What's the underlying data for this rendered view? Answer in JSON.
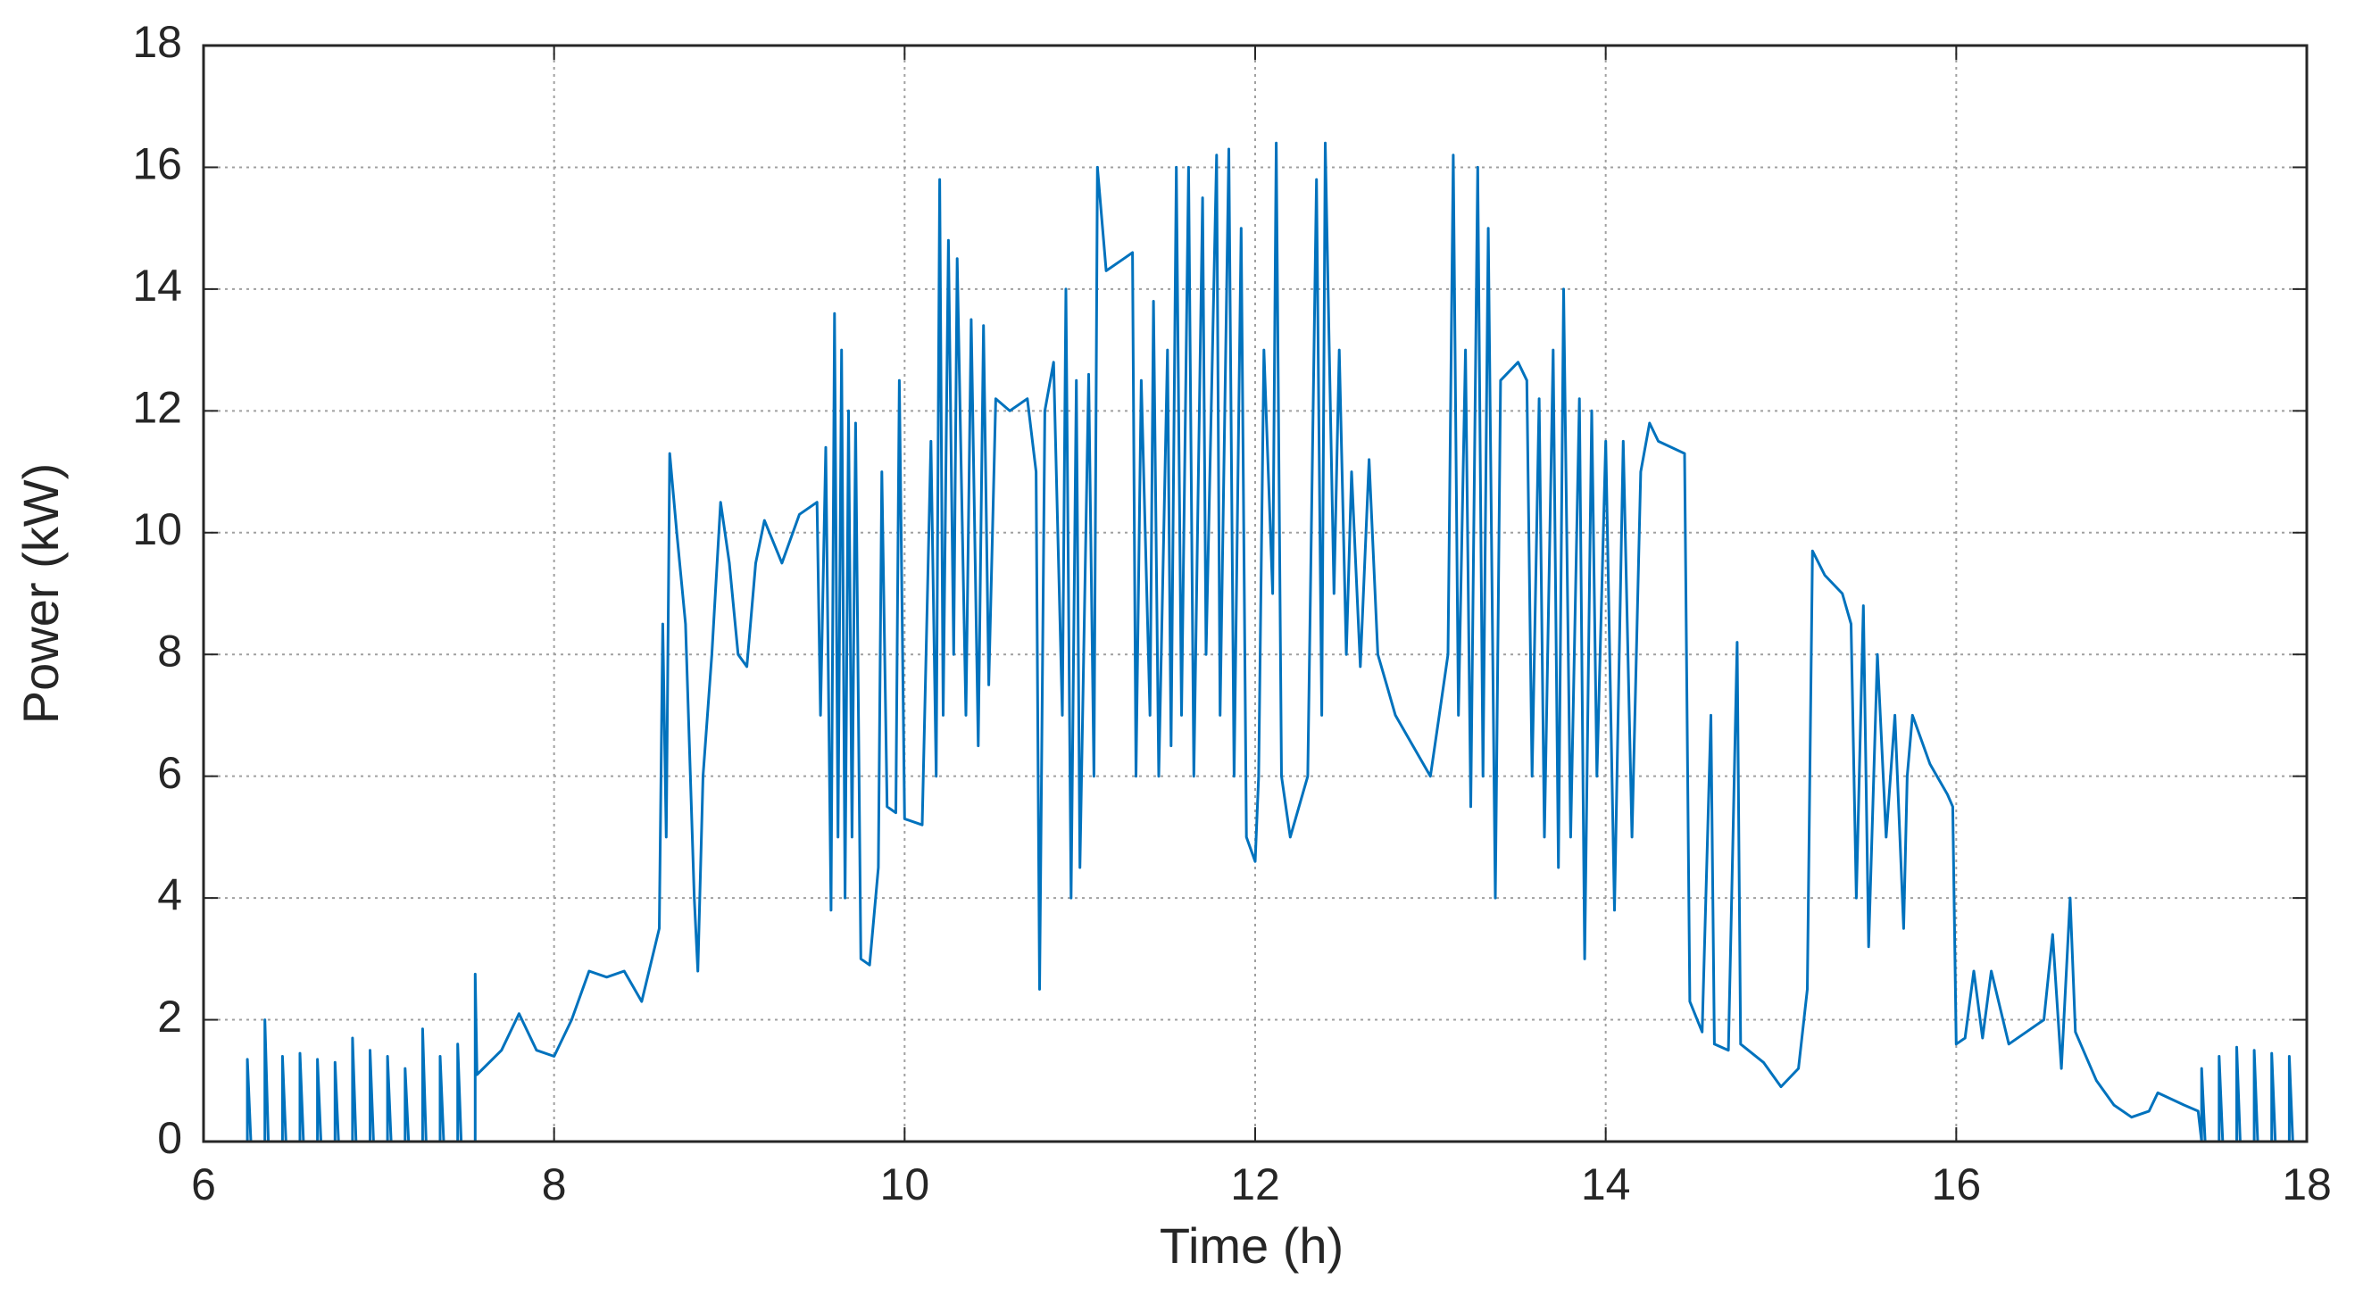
{
  "chart_data": {
    "type": "line",
    "x_label": "Time (h)",
    "y_label": "Power (kW)",
    "xlim": [
      6,
      18
    ],
    "ylim": [
      0,
      18
    ],
    "xticks": [
      6,
      8,
      10,
      12,
      14,
      16,
      18
    ],
    "yticks": [
      0,
      2,
      4,
      6,
      8,
      10,
      12,
      14,
      16,
      18
    ],
    "grid": true,
    "x": [
      6.25,
      6.25,
      6.27,
      6.35,
      6.35,
      6.37,
      6.45,
      6.45,
      6.47,
      6.55,
      6.55,
      6.57,
      6.65,
      6.65,
      6.67,
      6.75,
      6.75,
      6.77,
      6.85,
      6.85,
      6.87,
      6.95,
      6.95,
      6.97,
      7.05,
      7.05,
      7.07,
      7.15,
      7.15,
      7.17,
      7.25,
      7.25,
      7.27,
      7.35,
      7.35,
      7.37,
      7.45,
      7.45,
      7.47,
      7.55,
      7.55,
      7.56,
      7.7,
      7.8,
      7.9,
      8.0,
      8.1,
      8.2,
      8.3,
      8.4,
      8.5,
      8.6,
      8.62,
      8.64,
      8.66,
      8.7,
      8.75,
      8.8,
      8.82,
      8.85,
      8.9,
      8.95,
      9.0,
      9.05,
      9.1,
      9.15,
      9.2,
      9.3,
      9.4,
      9.5,
      9.52,
      9.55,
      9.58,
      9.6,
      9.62,
      9.64,
      9.66,
      9.68,
      9.7,
      9.72,
      9.75,
      9.8,
      9.85,
      9.87,
      9.9,
      9.95,
      9.97,
      10.0,
      10.1,
      10.15,
      10.18,
      10.2,
      10.22,
      10.25,
      10.28,
      10.3,
      10.35,
      10.38,
      10.42,
      10.45,
      10.48,
      10.52,
      10.6,
      10.7,
      10.75,
      10.77,
      10.8,
      10.85,
      10.9,
      10.92,
      10.95,
      10.98,
      11.0,
      11.05,
      11.08,
      11.1,
      11.15,
      11.25,
      11.3,
      11.32,
      11.35,
      11.4,
      11.42,
      11.45,
      11.5,
      11.52,
      11.55,
      11.58,
      11.62,
      11.65,
      11.7,
      11.72,
      11.78,
      11.8,
      11.85,
      11.88,
      11.92,
      11.95,
      12.0,
      12.02,
      12.05,
      12.1,
      12.12,
      12.15,
      12.2,
      12.3,
      12.35,
      12.38,
      12.4,
      12.45,
      12.48,
      12.52,
      12.55,
      12.6,
      12.65,
      12.7,
      12.75,
      12.8,
      12.9,
      13.0,
      13.05,
      13.1,
      13.13,
      13.16,
      13.2,
      13.23,
      13.27,
      13.3,
      13.33,
      13.37,
      13.4,
      13.5,
      13.55,
      13.58,
      13.62,
      13.65,
      13.7,
      13.73,
      13.76,
      13.8,
      13.85,
      13.88,
      13.92,
      13.95,
      14.0,
      14.05,
      14.1,
      14.15,
      14.2,
      14.25,
      14.3,
      14.45,
      14.48,
      14.55,
      14.6,
      14.62,
      14.7,
      14.75,
      14.77,
      14.9,
      15.0,
      15.1,
      15.15,
      15.18,
      15.25,
      15.35,
      15.4,
      15.43,
      15.47,
      15.5,
      15.55,
      15.6,
      15.65,
      15.7,
      15.72,
      15.75,
      15.85,
      15.95,
      15.98,
      16.0,
      16.05,
      16.1,
      16.15,
      16.2,
      16.3,
      16.4,
      16.5,
      16.55,
      16.6,
      16.65,
      16.68,
      16.8,
      16.9,
      17.0,
      17.1,
      17.15,
      17.3,
      17.38,
      17.4,
      17.4,
      17.42,
      17.5,
      17.5,
      17.52,
      17.6,
      17.6,
      17.62,
      17.7,
      17.7,
      17.72,
      17.8,
      17.8,
      17.82,
      17.9,
      17.9,
      17.92
    ],
    "series": [
      {
        "name": "Power",
        "color": "#0072bd",
        "values": [
          0,
          1.35,
          0,
          0,
          2.0,
          0,
          0,
          1.4,
          0,
          0,
          1.45,
          0,
          0,
          1.35,
          0,
          0,
          1.3,
          0,
          0,
          1.7,
          0,
          0,
          1.5,
          0,
          0,
          1.4,
          0,
          0,
          1.2,
          0,
          0,
          1.85,
          0,
          0,
          1.4,
          0,
          0,
          1.6,
          0,
          0,
          2.75,
          1.1,
          1.5,
          2.1,
          1.5,
          1.4,
          2.0,
          2.8,
          2.7,
          2.8,
          2.3,
          3.5,
          8.5,
          5.0,
          11.3,
          10.0,
          8.5,
          4.0,
          2.8,
          6.0,
          8.0,
          10.5,
          9.5,
          8.0,
          7.8,
          9.5,
          10.2,
          9.5,
          10.3,
          10.5,
          7.0,
          11.4,
          3.8,
          13.6,
          5.0,
          13.0,
          4.0,
          12.0,
          5.0,
          11.8,
          3.0,
          2.9,
          4.5,
          11.0,
          5.5,
          5.4,
          12.5,
          5.3,
          5.2,
          11.5,
          6.0,
          15.8,
          7.0,
          14.8,
          8.0,
          14.5,
          7.0,
          13.5,
          6.5,
          13.4,
          7.5,
          12.2,
          12.0,
          12.2,
          11.0,
          2.5,
          12.0,
          12.8,
          7.0,
          14.0,
          4.0,
          12.5,
          4.5,
          12.6,
          6.0,
          16.0,
          14.3,
          14.5,
          14.6,
          6.0,
          12.5,
          7.0,
          13.8,
          6.0,
          13.0,
          6.5,
          16.0,
          7.0,
          16.0,
          6.0,
          15.5,
          8.0,
          16.2,
          7.0,
          16.3,
          6.0,
          15.0,
          5.0,
          4.6,
          6.0,
          13.0,
          9.0,
          16.4,
          6.0,
          5.0,
          6.0,
          15.8,
          7.0,
          16.4,
          9.0,
          13.0,
          8.0,
          11.0,
          7.8,
          11.2,
          8.0,
          7.5,
          7.0,
          6.5,
          6.0,
          7.0,
          8.0,
          16.2,
          7.0,
          13.0,
          5.5,
          16.0,
          6.0,
          15.0,
          4.0,
          12.5,
          12.8,
          12.5,
          6.0,
          12.2,
          5.0,
          13.0,
          4.5,
          14.0,
          5.0,
          12.2,
          3.0,
          12.0,
          6.0,
          11.5,
          3.8,
          11.5,
          5.0,
          11.0,
          11.8,
          11.5,
          11.3,
          2.3,
          1.8,
          7.0,
          1.6,
          1.5,
          8.2,
          1.6,
          1.3,
          0.9,
          1.2,
          2.5,
          9.7,
          9.3,
          9.0,
          8.5,
          4.0,
          8.8,
          3.2,
          8.0,
          5.0,
          7.0,
          3.5,
          6.0,
          7.0,
          6.2,
          5.7,
          5.5,
          1.6,
          1.7,
          2.8,
          1.7,
          2.8,
          1.6,
          1.8,
          2.0,
          3.4,
          1.2,
          4.0,
          1.8,
          1.0,
          0.6,
          0.4,
          0.5,
          0.8,
          0.6,
          0.5,
          0,
          1.2,
          0,
          0,
          1.4,
          0,
          0,
          1.55,
          0,
          0,
          1.5,
          0,
          0,
          1.45,
          0,
          0,
          1.4,
          0
        ]
      }
    ]
  }
}
